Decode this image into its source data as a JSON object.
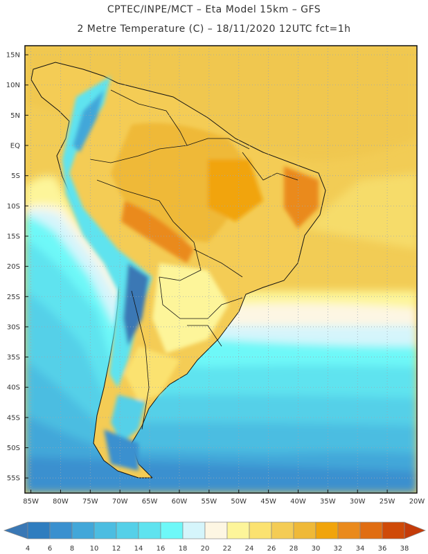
{
  "header": {
    "line1": "CPTEC/INPE/MCT –  Eta Model 15km – GFS",
    "line2": "2 Metre Temperature (C) – 18/11/2020 12UTC fct=1h"
  },
  "map": {
    "lat_labels": [
      "15N",
      "10N",
      "5N",
      "EQ",
      "5S",
      "10S",
      "15S",
      "20S",
      "25S",
      "30S",
      "35S",
      "40S",
      "45S",
      "50S",
      "55S"
    ],
    "lon_labels": [
      "85W",
      "80W",
      "75W",
      "70W",
      "65W",
      "60W",
      "55W",
      "50W",
      "45W",
      "40W",
      "35W",
      "30W",
      "25W",
      "20W"
    ],
    "extent": {
      "lon_min": -86,
      "lon_max": -20,
      "lat_min": -57.5,
      "lat_max": 16.5
    }
  },
  "colorbar": {
    "ticks": [
      "4",
      "6",
      "8",
      "10",
      "12",
      "14",
      "16",
      "18",
      "20",
      "22",
      "24",
      "26",
      "28",
      "30",
      "32",
      "34",
      "36",
      "38"
    ],
    "colors": [
      "#3a78b5",
      "#2f7dbf",
      "#3a90cf",
      "#42a7d9",
      "#4cbde1",
      "#55d0e8",
      "#5fe3ef",
      "#6ef8f8",
      "#d5f5fb",
      "#fdf6e3",
      "#fdf59a",
      "#fbe270",
      "#f4cc55",
      "#efb938",
      "#f1a40b",
      "#ea8a1c",
      "#e06d12",
      "#cf4a08",
      "#c43b09"
    ]
  }
}
